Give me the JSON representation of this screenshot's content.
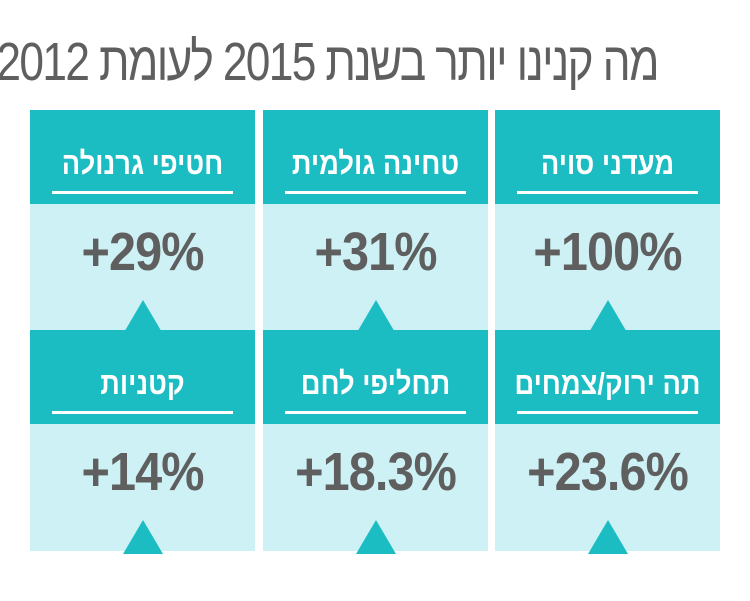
{
  "title": "מה קנינו יותר בשנת 2015 לעומת 2012",
  "colors": {
    "header_teal": "#1bbdc3",
    "body_light": "#cdf1f4",
    "text_gray": "#5f5f5f",
    "header_text": "#ffffff"
  },
  "chart_data": {
    "type": "table",
    "title": "מה קנינו יותר בשנת 2015 לעומת 2012",
    "unit": "%",
    "categories": [
      "מעדני סויה",
      "טחינה גולמית",
      "חטיפי גרנולה",
      "תה ירוק/צמחים",
      "תחליפי לחם",
      "קטניות"
    ],
    "values": [
      100,
      31,
      29,
      23.6,
      18.3,
      14
    ],
    "labels": [
      "+100%",
      "+31%",
      "+29%",
      "+23.6%",
      "+18.3%",
      "+14%"
    ],
    "direction_icon": "up-triangle"
  }
}
